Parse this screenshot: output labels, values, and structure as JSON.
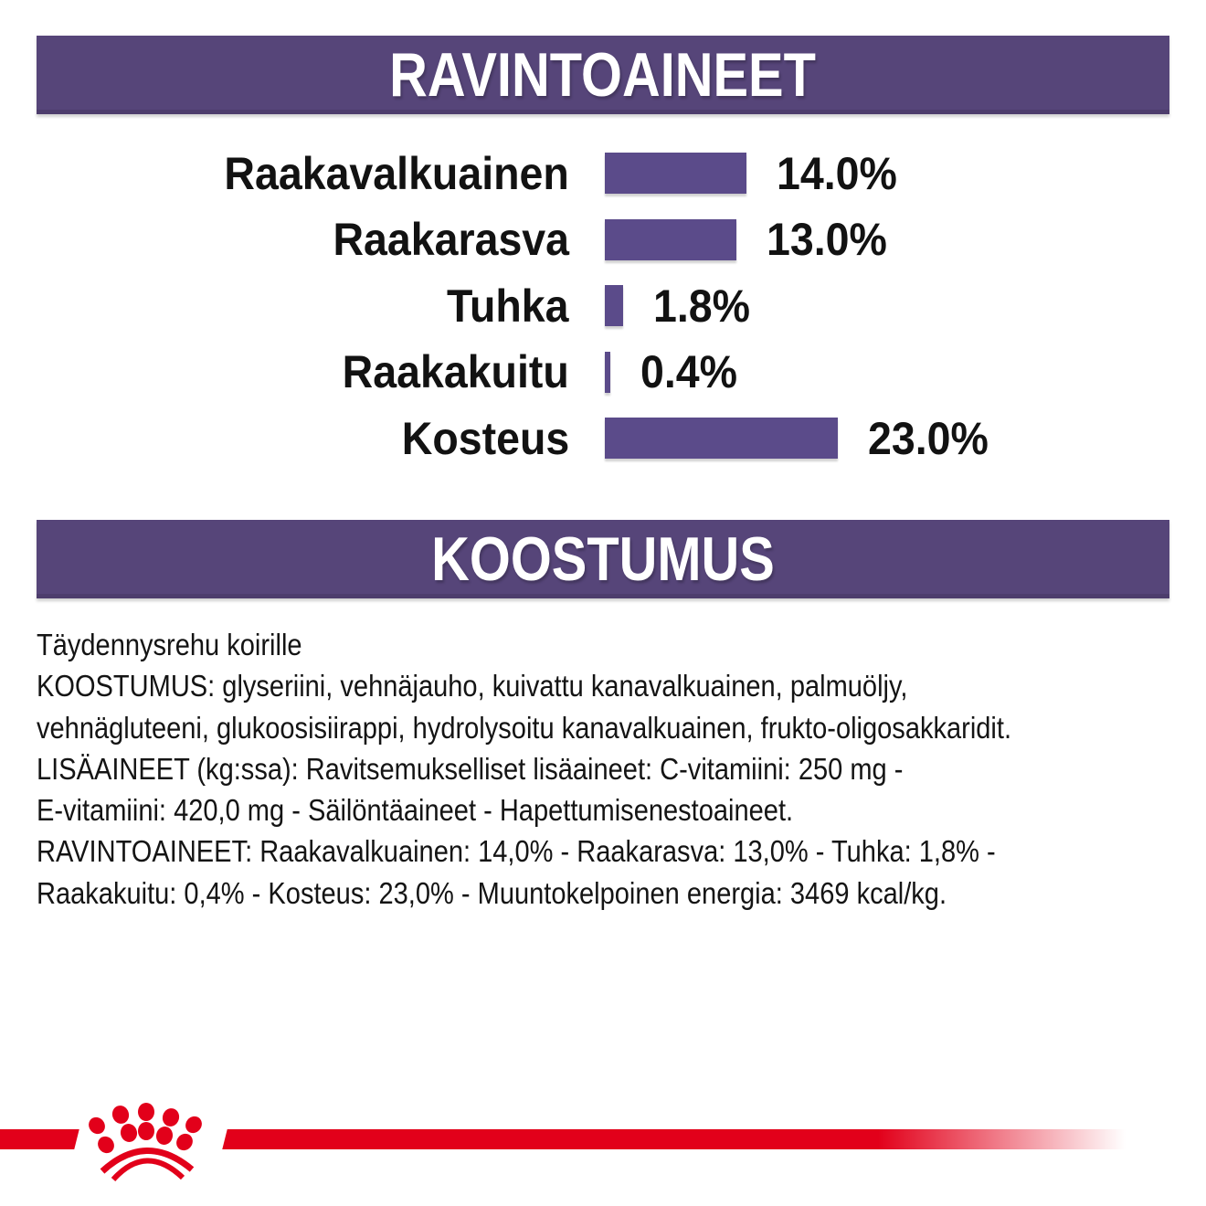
{
  "colors": {
    "header_purple": "#564579",
    "bar_purple": "#5b4b8a",
    "brand_red": "#e2001a",
    "text_black": "#141414"
  },
  "sections": {
    "nutrients_title": "RAVINTOAINEET",
    "composition_title": "KOOSTUMUS"
  },
  "chart_data": {
    "type": "bar",
    "orientation": "horizontal",
    "title": "RAVINTOAINEET",
    "categories": [
      "Raakavalkuainen",
      "Raakarasva",
      "Tuhka",
      "Raakakuitu",
      "Kosteus"
    ],
    "values": [
      14.0,
      13.0,
      1.8,
      0.4,
      23.0
    ],
    "value_labels": [
      "14.0%",
      "13.0%",
      "1.8%",
      "0.4%",
      "23.0%"
    ],
    "unit": "%",
    "xlim": [
      0,
      25
    ],
    "grid": false,
    "legend": false,
    "bar_color": "#5b4b8a"
  },
  "composition": {
    "lines": [
      "Täydennysrehu koirille",
      "KOOSTUMUS: glyseriini, vehnäjauho, kuivattu kanavalkuainen, palmuöljy,",
      "vehnägluteeni, glukoosisiirappi, hydrolysoitu kanavalkuainen, frukto-oligosakkaridit.",
      "LISÄAINEET (kg:ssa): Ravitsemukselliset lisäaineet: C-vitamiini: 250 mg -",
      "E-vitamiini: 420,0 mg - Säilöntäaineet - Hapettumisenestoaineet.",
      "RAVINTOAINEET: Raakavalkuainen: 14,0% - Raakarasva: 13,0% - Tuhka: 1,8% -",
      "Raakakuitu: 0,4% - Kosteus: 23,0% - Muuntokelpoinen energia: 3469 kcal/kg."
    ]
  },
  "footer": {
    "logo": "royal-canin-crown"
  }
}
